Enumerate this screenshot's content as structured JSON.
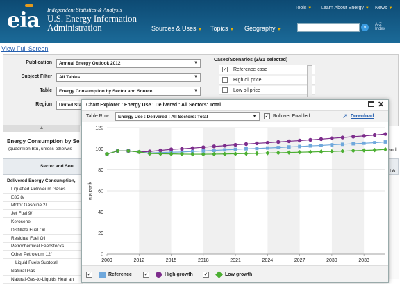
{
  "header": {
    "logo": "eia",
    "tagline": "Independent Statistics & Analysis",
    "org_name": "U.S. Energy Information Administration",
    "top_nav": [
      "Tools",
      "Learn About Energy",
      "News"
    ],
    "main_nav": [
      "Sources & Uses",
      "Topics",
      "Geography"
    ],
    "search_placeholder": "",
    "az_line1": "A-Z",
    "az_line2": "Index"
  },
  "view_full_link": "View Full Screen",
  "filters": {
    "publication_label": "Publication",
    "publication_value": "Annual Energy Outlook 2012",
    "subject_label": "Subject Filter",
    "subject_value": "All Tables",
    "table_label": "Table",
    "table_value": "Energy Consumption by Sector and Source",
    "region_label": "Region",
    "region_value": "United Stat"
  },
  "cases": {
    "title": "Cases/Scenarios (3/31 selected)",
    "items": [
      {
        "label": "Reference case",
        "checked": true
      },
      {
        "label": "High oil price",
        "checked": false
      },
      {
        "label": "Low oil price",
        "checked": false
      }
    ]
  },
  "table": {
    "title": "Energy Consumption by Se",
    "subtitle": "(quadrillion Btu, unless otherwis",
    "trailing": "and",
    "header_label": "Sector and Sou",
    "header_right": "Lo",
    "rows": [
      "Delivered Energy Consumption,",
      "Liquefied Petroleum Gases",
      "E85 8/",
      "Motor Gasoline 2/",
      "Jet Fuel 9/",
      "Kerosene",
      "Distillate Fuel Oil",
      "Residual Fuel Oil",
      "Petrochemical Feedstocks",
      "Other Petroleum 12/",
      "Liquid Fuels Subtotal",
      "Natural Gas",
      "Natural-Gas-to-Liquids Heat an"
    ]
  },
  "chart_explorer": {
    "title": "Chart Explorer : Energy Use : Delivered : All Sectors: Total",
    "table_row_label": "Table Row",
    "table_row_value": "Energy Use : Delivered : All Sectors: Total",
    "rollover_label": "Rollover Enabled",
    "rollover_checked": true,
    "download_label": "Download"
  },
  "chart_data": {
    "type": "line",
    "ylabel": "quad Btu",
    "ylim": [
      0,
      120
    ],
    "yticks": [
      0,
      20,
      40,
      60,
      80,
      100,
      120
    ],
    "x": [
      2009,
      2010,
      2011,
      2012,
      2013,
      2014,
      2015,
      2016,
      2017,
      2018,
      2019,
      2020,
      2021,
      2022,
      2023,
      2024,
      2025,
      2026,
      2027,
      2028,
      2029,
      2030,
      2031,
      2032,
      2033,
      2034,
      2035
    ],
    "xtick_labels": [
      "2009",
      "2012",
      "2015",
      "2018",
      "2021",
      "2024",
      "2027",
      "2030",
      "2033"
    ],
    "xlim": [
      2009,
      2035
    ],
    "grid": true,
    "series": [
      {
        "name": "Reference",
        "color": "#6fa8dc",
        "marker": "square",
        "values": [
          95,
          98,
          98,
          97,
          96,
          96.5,
          96.8,
          97,
          97.5,
          98,
          98.5,
          99,
          99.5,
          100,
          100.3,
          100.8,
          101.2,
          101.8,
          102.2,
          102.8,
          103.2,
          103.8,
          104.3,
          104.8,
          105.3,
          105.8,
          106.5
        ]
      },
      {
        "name": "High growth",
        "color": "#7d2d8c",
        "marker": "circle",
        "values": [
          95,
          98,
          98,
          97,
          97.5,
          98.5,
          99.5,
          100,
          100.7,
          101.5,
          102.3,
          103,
          103.8,
          104.5,
          105.2,
          105.8,
          106.5,
          107.2,
          107.8,
          108.5,
          109.2,
          110,
          110.7,
          111.5,
          112.2,
          113,
          114
        ]
      },
      {
        "name": "Low growth",
        "color": "#4caf32",
        "marker": "diamond",
        "values": [
          95,
          98,
          98,
          97,
          95.5,
          95.3,
          95.2,
          95,
          94.9,
          94.9,
          95,
          95.1,
          95.3,
          95.5,
          95.7,
          96,
          96.2,
          96.5,
          96.8,
          97,
          97.3,
          97.5,
          97.8,
          98.2,
          98.5,
          98.8,
          99.5
        ]
      }
    ],
    "legend_position": "bottom"
  }
}
